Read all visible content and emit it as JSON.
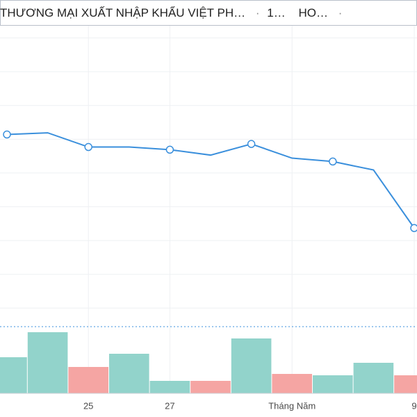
{
  "chart_data": {
    "type": "line",
    "title": "THƯƠNG MẠI XUẤT NHẬP KHẨU VIỆT PH…",
    "separator": "·",
    "interval": "1…",
    "exchange": "HO…",
    "categories": [
      null,
      null,
      "25",
      null,
      "27",
      null,
      null,
      "Tháng Năm",
      null,
      null,
      "9"
    ],
    "series": [
      {
        "color": "#3a8fdc",
        "values": [
          51.4,
          51.9,
          47.7,
          47.7,
          46.9,
          45.3,
          48.6,
          44.4,
          43.4,
          40.9,
          23.7
        ]
      }
    ],
    "marker_step": 2,
    "ylim": [
      -5.5,
      83
    ],
    "yticks": [
      0,
      10,
      20,
      30,
      40,
      50,
      60,
      70,
      80
    ],
    "grid": true,
    "volume": {
      "values": [
        52,
        88,
        38,
        57,
        18,
        18,
        79,
        28,
        26,
        44,
        26
      ],
      "colors": [
        "#92d3cb",
        "#92d3cb",
        "#f5a5a3",
        "#92d3cb",
        "#92d3cb",
        "#f5a5a3",
        "#92d3cb",
        "#f5a5a3",
        "#92d3cb",
        "#92d3cb",
        "#f5a5a3"
      ],
      "ylim": [
        0,
        95
      ]
    }
  }
}
